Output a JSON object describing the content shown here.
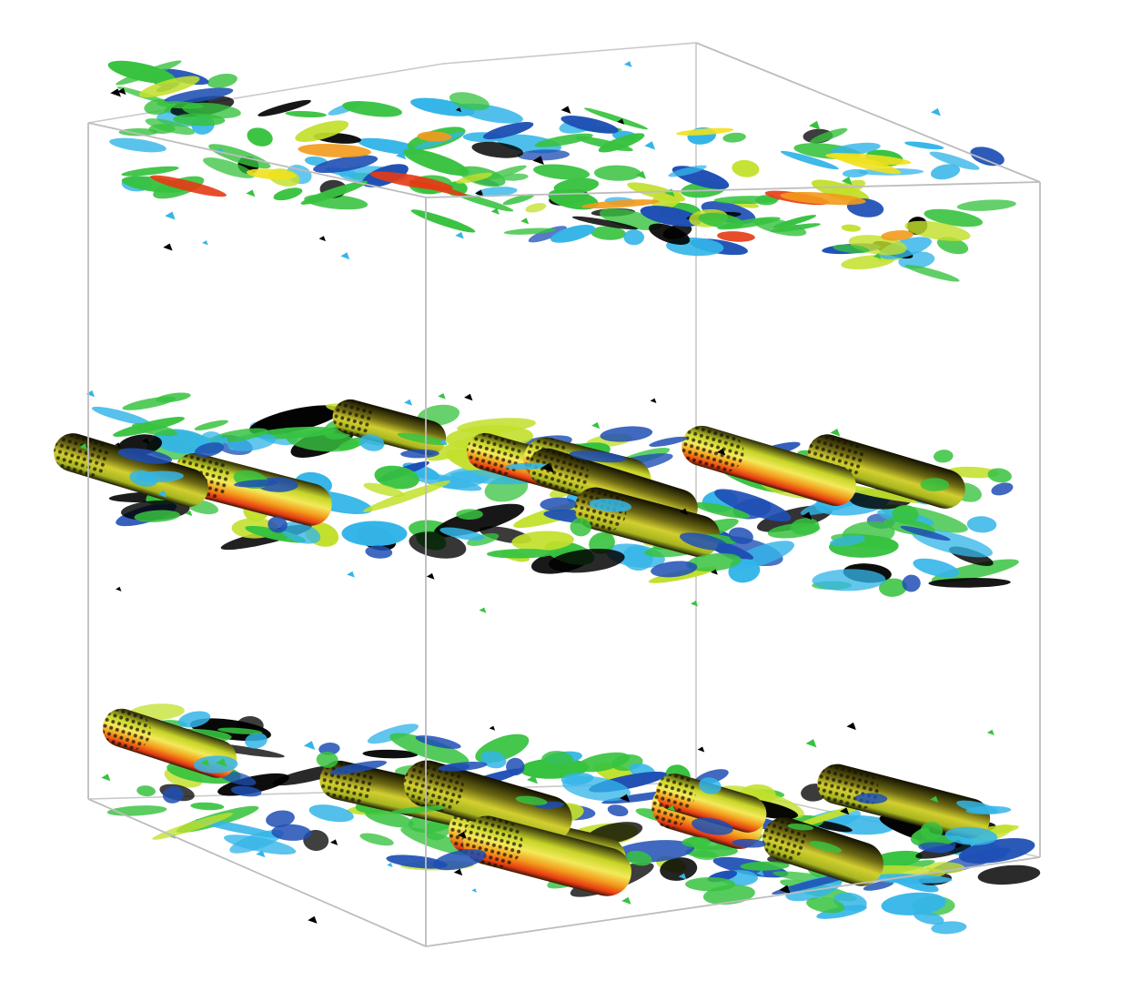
{
  "figure": {
    "kind": "3d-isosurface-render",
    "layers": [
      {
        "id": "top-layer",
        "style": "fine"
      },
      {
        "id": "middle-layer",
        "style": "coarse"
      },
      {
        "id": "bottom-layer",
        "style": "coarse"
      }
    ],
    "colormap": [
      "#000000",
      "#1e4fb4",
      "#34b5e8",
      "#37c23f",
      "#c2e02c",
      "#f0e11e",
      "#f39a1b",
      "#e63a14"
    ],
    "box_line_color": "#c9c9c9",
    "background": "#ffffff"
  }
}
